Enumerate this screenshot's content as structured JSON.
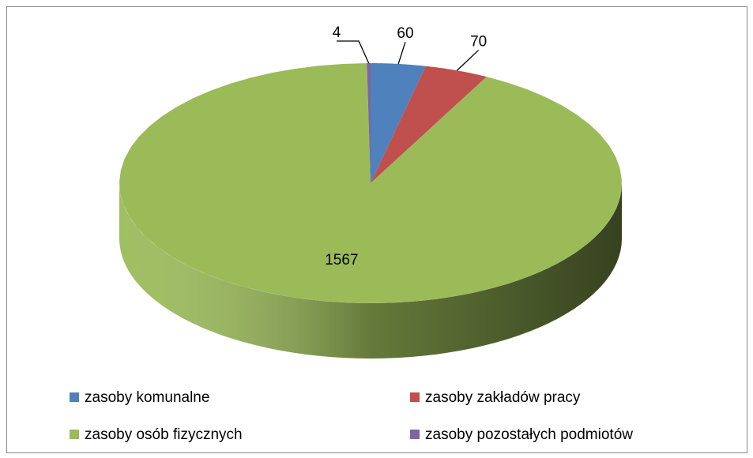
{
  "chart_data": {
    "type": "pie",
    "categories": [
      "zasoby komunalne",
      "zasoby zakładów pracy",
      "zasoby osób fizycznych",
      "zasoby pozostałych podmiotów"
    ],
    "values": [
      60,
      70,
      1567,
      4
    ],
    "colors": [
      "#4f81bd",
      "#c0504d",
      "#9bbb59",
      "#8064a2"
    ],
    "legend": "bottom"
  }
}
